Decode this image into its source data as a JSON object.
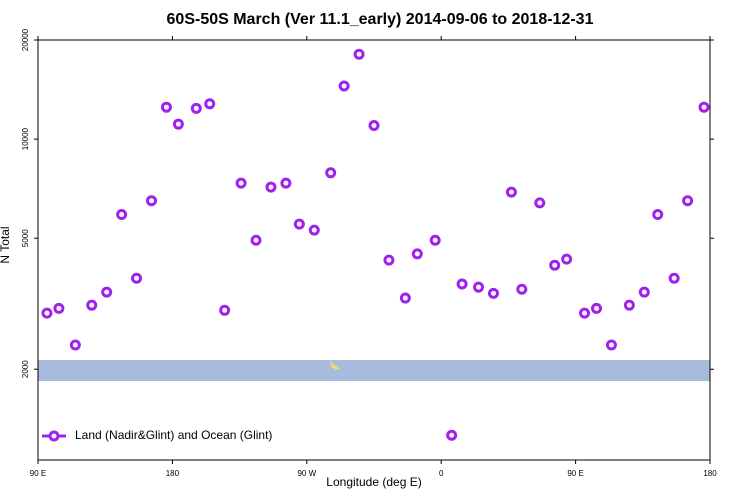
{
  "chart_data": {
    "type": "scatter",
    "title": "60S-50S March (Ver 11.1_early)   2014-09-06 to 2018-12-31",
    "x_label": "Longitude (deg E)",
    "y_label": "N Total",
    "ylog": true,
    "legend_position": "lower left",
    "xlim": [
      90,
      540
    ],
    "xticks": [
      {
        "value": 90,
        "label": "90 E"
      },
      180,
      {
        "value": 270,
        "label": "90 W"
      },
      {
        "value": 360,
        "label": "0"
      },
      {
        "value": 450,
        "label": "90 E"
      },
      {
        "value": 540,
        "label": "180"
      }
    ],
    "ylim": [
      1060,
      20000
    ],
    "yticks": [
      2000,
      5000,
      10000,
      20000
    ],
    "series": [
      {
        "name": "Land (Nadir&Glint) and Ocean (Glint)",
        "color": "#a020f0",
        "x": [
          96,
          104,
          115,
          126,
          136,
          146,
          156,
          166,
          176,
          184,
          196,
          205,
          215,
          226,
          236,
          246,
          256,
          265,
          275,
          286,
          295,
          305,
          315,
          325,
          336,
          344,
          356,
          367,
          374,
          385,
          395,
          407,
          414,
          426,
          436,
          444,
          456,
          464,
          474,
          486,
          496,
          505,
          516,
          525,
          536
        ],
        "values": [
          2960,
          3060,
          2370,
          3130,
          3430,
          5900,
          3780,
          6500,
          12500,
          11100,
          12400,
          12800,
          3020,
          7350,
          4930,
          7150,
          7350,
          5520,
          5290,
          7900,
          14500,
          18100,
          11000,
          4290,
          3290,
          4480,
          4930,
          1260,
          3630,
          3550,
          3400,
          6900,
          3500,
          6400,
          4140,
          4320,
          2960,
          3060,
          2370,
          3130,
          3430,
          5900,
          3780,
          6500,
          12500
        ]
      }
    ]
  }
}
